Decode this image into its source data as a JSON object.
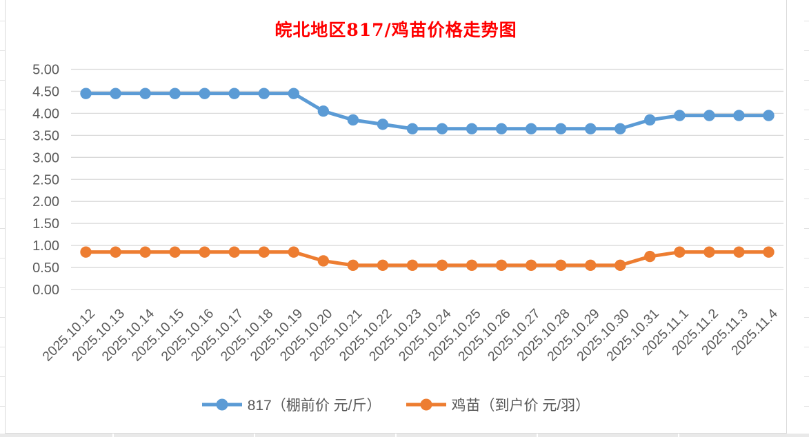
{
  "chart_data": {
    "type": "line",
    "title": "皖北地区817/鸡苗价格走势图",
    "title_color": "#FF0000",
    "categories": [
      "2025.10.12",
      "2025.10.13",
      "2025.10.14",
      "2025.10.15",
      "2025.10.16",
      "2025.10.17",
      "2025.10.18",
      "2025.10.19",
      "2025.10.20",
      "2025.10.21",
      "2025.10.22",
      "2025.10.23",
      "2025.10.24",
      "2025.10.25",
      "2025.10.26",
      "2025.10.27",
      "2025.10.28",
      "2025.10.29",
      "2025.10.30",
      "2025.10.31",
      "2025.11.1",
      "2025.11.2",
      "2025.11.3",
      "2025.11.4"
    ],
    "series": [
      {
        "name": "817（棚前价 元/斤）",
        "color": "#5B9BD5",
        "values": [
          4.45,
          4.45,
          4.45,
          4.45,
          4.45,
          4.45,
          4.45,
          4.45,
          4.05,
          3.85,
          3.75,
          3.65,
          3.65,
          3.65,
          3.65,
          3.65,
          3.65,
          3.65,
          3.65,
          3.85,
          3.95,
          3.95,
          3.95,
          3.95
        ]
      },
      {
        "name": "鸡苗（到户价 元/羽）",
        "color": "#ED7D31",
        "values": [
          0.85,
          0.85,
          0.85,
          0.85,
          0.85,
          0.85,
          0.85,
          0.85,
          0.65,
          0.55,
          0.55,
          0.55,
          0.55,
          0.55,
          0.55,
          0.55,
          0.55,
          0.55,
          0.55,
          0.75,
          0.85,
          0.85,
          0.85,
          0.85
        ]
      }
    ],
    "ylim": [
      0,
      5
    ],
    "y_ticks": [
      "5.00",
      "4.50",
      "4.00",
      "3.50",
      "3.00",
      "2.50",
      "2.00",
      "1.50",
      "1.00",
      "0.50",
      "0.00"
    ],
    "grid": true,
    "legend_position": "bottom",
    "axis_label_color": "#595959",
    "gridline_color": "#D9D9D9"
  }
}
